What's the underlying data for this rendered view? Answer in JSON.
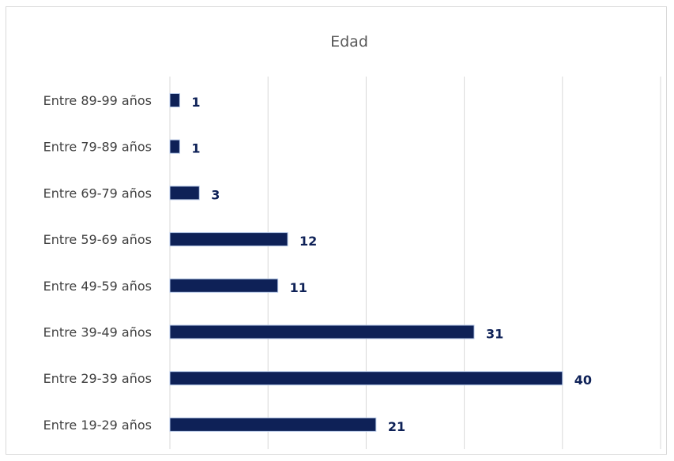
{
  "chart_data": {
    "type": "bar",
    "orientation": "horizontal",
    "title": "Edad",
    "categories": [
      "Entre 89-99 años",
      "Entre 79-89 años",
      "Entre 69-79 años",
      "Entre 59-69 años",
      "Entre 49-59 años",
      "Entre 39-49 años",
      "Entre 29-39 años",
      "Entre 19-29 años"
    ],
    "values": [
      1,
      1,
      3,
      12,
      11,
      31,
      40,
      21
    ],
    "xlim": [
      0,
      50
    ],
    "major_gridline_step": 10,
    "gridlines": "vertical",
    "x_tick_labels_shown": false,
    "legend": "none",
    "data_labels": "outside-end",
    "colors": {
      "bar_fill": "#0e2157",
      "bar_outline": "#b4c7e7",
      "data_label": "#0e2157",
      "gridline": "#d9d9d9",
      "title": "#595959",
      "category_label": "#404040"
    }
  }
}
